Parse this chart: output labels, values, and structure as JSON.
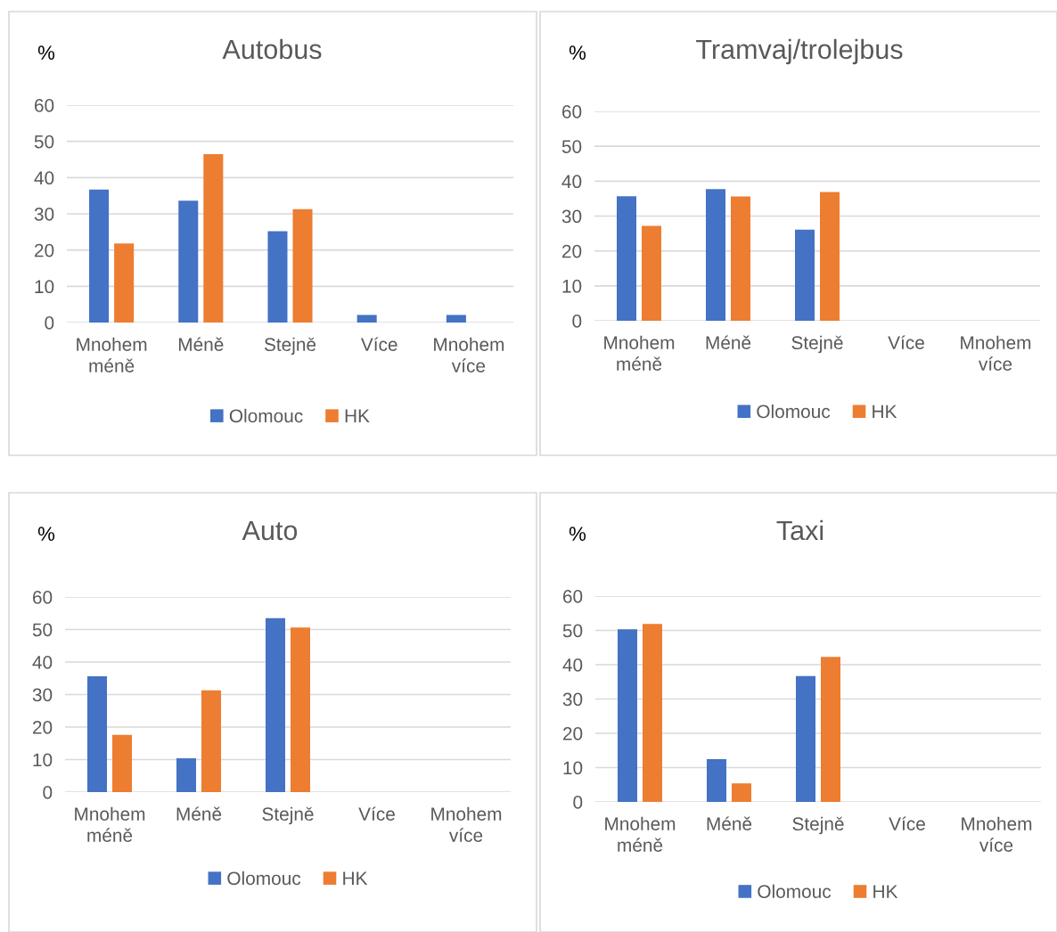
{
  "chart_data": [
    {
      "type": "bar",
      "title": "Autobus",
      "ylabel": "%",
      "categories": [
        "Mnohem\nméně",
        "Méně",
        "Stejně",
        "Více",
        "Mnohem\nvíce"
      ],
      "series": [
        {
          "name": "Olomouc",
          "color": "#4472c4",
          "values": [
            36.7,
            33.6,
            25.2,
            2.1,
            2.1
          ]
        },
        {
          "name": "HK",
          "color": "#ed7d31",
          "values": [
            21.8,
            46.5,
            31.3,
            0,
            0
          ]
        }
      ],
      "ylim": [
        0,
        60
      ],
      "yticks": [
        0,
        10,
        20,
        30,
        40,
        50,
        60
      ],
      "grid": "y",
      "legend": "bottom"
    },
    {
      "type": "bar",
      "title": "Tramvaj/trolejbus",
      "ylabel": "%",
      "categories": [
        "Mnohem\nméně",
        "Méně",
        "Stejně",
        "Více",
        "Mnohem\nvíce"
      ],
      "series": [
        {
          "name": "Olomouc",
          "color": "#4472c4",
          "values": [
            35.7,
            37.7,
            26.1,
            0,
            0
          ]
        },
        {
          "name": "HK",
          "color": "#ed7d31",
          "values": [
            27.2,
            35.6,
            36.9,
            0,
            0
          ]
        }
      ],
      "ylim": [
        0,
        60
      ],
      "yticks": [
        0,
        10,
        20,
        30,
        40,
        50,
        60
      ],
      "grid": "y",
      "legend": "bottom"
    },
    {
      "type": "bar",
      "title": "Auto",
      "ylabel": "%",
      "categories": [
        "Mnohem\nméně",
        "Méně",
        "Stejně",
        "Více",
        "Mnohem\nvíce"
      ],
      "series": [
        {
          "name": "Olomouc",
          "color": "#4472c4",
          "values": [
            35.6,
            10.4,
            53.5,
            0,
            0
          ]
        },
        {
          "name": "HK",
          "color": "#ed7d31",
          "values": [
            17.6,
            31.3,
            50.6,
            0,
            0
          ]
        }
      ],
      "ylim": [
        0,
        60
      ],
      "yticks": [
        0,
        10,
        20,
        30,
        40,
        50,
        60
      ],
      "grid": "y",
      "legend": "bottom"
    },
    {
      "type": "bar",
      "title": "Taxi",
      "ylabel": "%",
      "categories": [
        "Mnohem\nméně",
        "Méně",
        "Stejně",
        "Více",
        "Mnohem\nvíce"
      ],
      "series": [
        {
          "name": "Olomouc",
          "color": "#4472c4",
          "values": [
            50.3,
            12.5,
            36.7,
            0,
            0
          ]
        },
        {
          "name": "HK",
          "color": "#ed7d31",
          "values": [
            51.9,
            5.4,
            42.3,
            0,
            0
          ]
        }
      ],
      "ylim": [
        0,
        60
      ],
      "yticks": [
        0,
        10,
        20,
        30,
        40,
        50,
        60
      ],
      "grid": "y",
      "legend": "bottom"
    }
  ]
}
